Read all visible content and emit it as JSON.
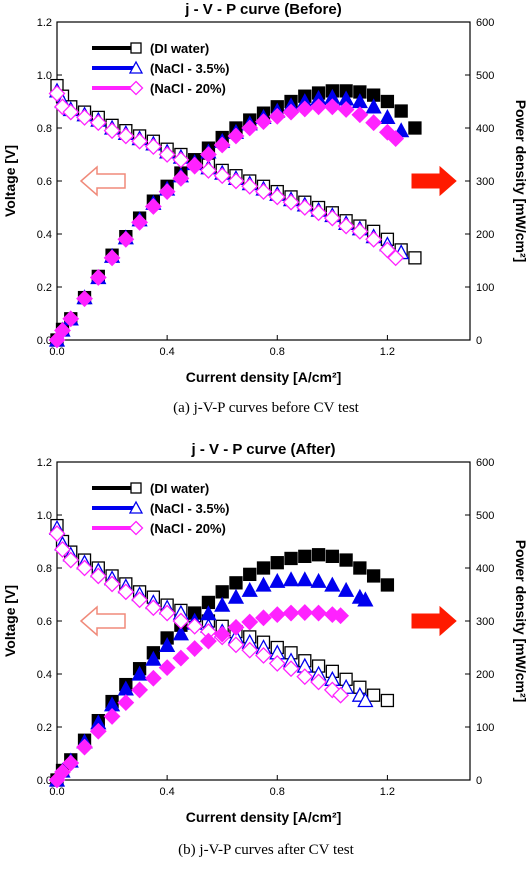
{
  "figure": {
    "caption_a": "(a) j-V-P curves before CV test",
    "caption_b": "(b) j-V-P curves after CV test"
  },
  "chart_data": [
    {
      "type": "scatter",
      "title": "j - V - P curve (Before)",
      "xlabel": "Current density [A/cm²]",
      "ylabel": "Voltage [V]",
      "y2label": "Power density [mW/cm²]",
      "xlim": [
        0,
        1.5
      ],
      "ylim": [
        0,
        1.2
      ],
      "y2lim": [
        0,
        600
      ],
      "xticks": [
        "0.0",
        "0.4",
        "0.8",
        "1.2"
      ],
      "yticks": [
        "0.0",
        "0.2",
        "0.4",
        "0.6",
        "0.8",
        "1.0",
        "1.2"
      ],
      "y2ticks": [
        "0",
        "100",
        "200",
        "300",
        "400",
        "500",
        "600"
      ],
      "legend_position": "top-left",
      "grid": false,
      "series": [
        {
          "name": "(DI water)",
          "color": "#000000",
          "marker": "square",
          "voltage": {
            "x": [
              0.0,
              0.02,
              0.05,
              0.1,
              0.15,
              0.2,
              0.25,
              0.3,
              0.35,
              0.4,
              0.45,
              0.5,
              0.55,
              0.6,
              0.65,
              0.7,
              0.75,
              0.8,
              0.85,
              0.9,
              0.95,
              1.0,
              1.05,
              1.1,
              1.15,
              1.2,
              1.25,
              1.3
            ],
            "y": [
              0.96,
              0.92,
              0.88,
              0.86,
              0.84,
              0.81,
              0.79,
              0.77,
              0.75,
              0.72,
              0.7,
              0.68,
              0.66,
              0.64,
              0.62,
              0.6,
              0.58,
              0.56,
              0.54,
              0.52,
              0.5,
              0.48,
              0.45,
              0.43,
              0.41,
              0.38,
              0.34,
              0.31
            ]
          },
          "power": {
            "x": [
              0.0,
              0.02,
              0.05,
              0.1,
              0.15,
              0.2,
              0.25,
              0.3,
              0.35,
              0.4,
              0.45,
              0.5,
              0.55,
              0.6,
              0.65,
              0.7,
              0.75,
              0.8,
              0.85,
              0.9,
              0.95,
              1.0,
              1.05,
              1.1,
              1.15,
              1.2,
              1.25,
              1.3
            ],
            "y": [
              0,
              20,
              40,
              80,
              120,
              160,
              195,
              230,
              262,
              290,
              315,
              340,
              362,
              382,
              400,
              415,
              428,
              440,
              450,
              460,
              466,
              470,
              470,
              468,
              462,
              450,
              432,
              400
            ]
          }
        },
        {
          "name": "(NaCl - 3.5%)",
          "color": "#0000ee",
          "marker": "triangle",
          "voltage": {
            "x": [
              0.0,
              0.02,
              0.05,
              0.1,
              0.15,
              0.2,
              0.25,
              0.3,
              0.35,
              0.4,
              0.45,
              0.5,
              0.55,
              0.6,
              0.65,
              0.7,
              0.75,
              0.8,
              0.85,
              0.9,
              0.95,
              1.0,
              1.05,
              1.1,
              1.15,
              1.2,
              1.25
            ],
            "y": [
              0.94,
              0.9,
              0.87,
              0.85,
              0.83,
              0.8,
              0.78,
              0.76,
              0.74,
              0.71,
              0.69,
              0.67,
              0.65,
              0.63,
              0.61,
              0.59,
              0.57,
              0.55,
              0.53,
              0.51,
              0.49,
              0.47,
              0.44,
              0.42,
              0.39,
              0.36,
              0.33
            ]
          },
          "power": {
            "x": [
              0.0,
              0.02,
              0.05,
              0.1,
              0.15,
              0.2,
              0.25,
              0.3,
              0.35,
              0.4,
              0.45,
              0.5,
              0.55,
              0.6,
              0.65,
              0.7,
              0.75,
              0.8,
              0.85,
              0.9,
              0.95,
              1.0,
              1.05,
              1.1,
              1.15,
              1.2,
              1.25
            ],
            "y": [
              0,
              19,
              40,
              80,
              118,
              158,
              193,
              227,
              258,
              285,
              310,
              333,
              355,
              375,
              392,
              408,
              420,
              432,
              442,
              450,
              456,
              458,
              455,
              450,
              440,
              420,
              395
            ]
          }
        },
        {
          "name": "(NaCl - 20%)",
          "color": "#ff22ff",
          "marker": "diamond",
          "voltage": {
            "x": [
              0.0,
              0.02,
              0.05,
              0.1,
              0.15,
              0.2,
              0.25,
              0.3,
              0.35,
              0.4,
              0.45,
              0.5,
              0.55,
              0.6,
              0.65,
              0.7,
              0.75,
              0.8,
              0.85,
              0.9,
              0.95,
              1.0,
              1.05,
              1.1,
              1.15,
              1.2,
              1.23
            ],
            "y": [
              0.93,
              0.88,
              0.86,
              0.84,
              0.82,
              0.79,
              0.77,
              0.75,
              0.73,
              0.7,
              0.68,
              0.66,
              0.64,
              0.62,
              0.6,
              0.58,
              0.56,
              0.54,
              0.52,
              0.5,
              0.48,
              0.46,
              0.43,
              0.41,
              0.38,
              0.34,
              0.31
            ]
          },
          "power": {
            "x": [
              0.0,
              0.02,
              0.05,
              0.1,
              0.15,
              0.2,
              0.25,
              0.3,
              0.35,
              0.4,
              0.45,
              0.5,
              0.55,
              0.6,
              0.65,
              0.7,
              0.75,
              0.8,
              0.85,
              0.9,
              0.95,
              1.0,
              1.05,
              1.1,
              1.15,
              1.2,
              1.23
            ],
            "y": [
              0,
              18,
              40,
              78,
              118,
              155,
              190,
              222,
              252,
              280,
              305,
              328,
              350,
              368,
              385,
              400,
              412,
              422,
              430,
              436,
              440,
              440,
              435,
              425,
              410,
              392,
              380
            ]
          }
        }
      ]
    },
    {
      "type": "scatter",
      "title": "j - V - P curve (After)",
      "xlabel": "Current density [A/cm²]",
      "ylabel": "Voltage [V]",
      "y2label": "Power density [mW/cm²]",
      "xlim": [
        0,
        1.5
      ],
      "ylim": [
        0,
        1.2
      ],
      "y2lim": [
        0,
        600
      ],
      "xticks": [
        "0.0",
        "0.4",
        "0.8",
        "1.2"
      ],
      "yticks": [
        "0.0",
        "0.2",
        "0.4",
        "0.6",
        "0.8",
        "1.0",
        "1.2"
      ],
      "y2ticks": [
        "0",
        "100",
        "200",
        "300",
        "400",
        "500",
        "600"
      ],
      "legend_position": "top-left",
      "grid": false,
      "series": [
        {
          "name": "(DI water)",
          "color": "#000000",
          "marker": "square",
          "voltage": {
            "x": [
              0.0,
              0.02,
              0.05,
              0.1,
              0.15,
              0.2,
              0.25,
              0.3,
              0.35,
              0.4,
              0.45,
              0.5,
              0.55,
              0.6,
              0.65,
              0.7,
              0.75,
              0.8,
              0.85,
              0.9,
              0.95,
              1.0,
              1.05,
              1.1,
              1.15,
              1.2
            ],
            "y": [
              0.96,
              0.9,
              0.86,
              0.83,
              0.8,
              0.77,
              0.74,
              0.71,
              0.69,
              0.66,
              0.64,
              0.62,
              0.6,
              0.58,
              0.56,
              0.54,
              0.52,
              0.5,
              0.48,
              0.45,
              0.43,
              0.41,
              0.38,
              0.35,
              0.32,
              0.3
            ]
          },
          "power": {
            "x": [
              0.0,
              0.02,
              0.05,
              0.1,
              0.15,
              0.2,
              0.25,
              0.3,
              0.35,
              0.4,
              0.45,
              0.5,
              0.55,
              0.6,
              0.65,
              0.7,
              0.75,
              0.8,
              0.85,
              0.9,
              0.95,
              1.0,
              1.05,
              1.1,
              1.15,
              1.2
            ],
            "y": [
              0,
              18,
              38,
              75,
              112,
              148,
              180,
              210,
              240,
              268,
              292,
              315,
              335,
              355,
              372,
              388,
              400,
              410,
              418,
              422,
              425,
              422,
              415,
              400,
              385,
              368
            ]
          }
        },
        {
          "name": "(NaCl - 3.5%)",
          "color": "#0000ee",
          "marker": "triangle",
          "voltage": {
            "x": [
              0.0,
              0.02,
              0.05,
              0.1,
              0.15,
              0.2,
              0.25,
              0.3,
              0.35,
              0.4,
              0.45,
              0.5,
              0.55,
              0.6,
              0.65,
              0.7,
              0.75,
              0.8,
              0.85,
              0.9,
              0.95,
              1.0,
              1.05,
              1.1,
              1.12
            ],
            "y": [
              0.95,
              0.89,
              0.85,
              0.82,
              0.79,
              0.76,
              0.73,
              0.7,
              0.67,
              0.65,
              0.63,
              0.6,
              0.58,
              0.56,
              0.54,
              0.52,
              0.5,
              0.48,
              0.45,
              0.43,
              0.4,
              0.38,
              0.35,
              0.32,
              0.3
            ]
          },
          "power": {
            "x": [
              0.0,
              0.02,
              0.05,
              0.1,
              0.15,
              0.2,
              0.25,
              0.3,
              0.35,
              0.4,
              0.45,
              0.5,
              0.55,
              0.6,
              0.65,
              0.7,
              0.75,
              0.8,
              0.85,
              0.9,
              0.95,
              1.0,
              1.05,
              1.1,
              1.12
            ],
            "y": [
              0,
              17,
              36,
              72,
              108,
              142,
              172,
              200,
              228,
              254,
              276,
              296,
              314,
              330,
              345,
              358,
              368,
              375,
              378,
              378,
              375,
              368,
              358,
              345,
              340
            ]
          }
        },
        {
          "name": "(NaCl - 20%)",
          "color": "#ff22ff",
          "marker": "diamond",
          "voltage": {
            "x": [
              0.0,
              0.02,
              0.05,
              0.1,
              0.15,
              0.2,
              0.25,
              0.3,
              0.35,
              0.4,
              0.45,
              0.5,
              0.55,
              0.6,
              0.65,
              0.7,
              0.75,
              0.8,
              0.85,
              0.9,
              0.95,
              1.0,
              1.03
            ],
            "y": [
              0.93,
              0.87,
              0.83,
              0.8,
              0.77,
              0.74,
              0.71,
              0.68,
              0.65,
              0.63,
              0.6,
              0.58,
              0.56,
              0.54,
              0.51,
              0.49,
              0.47,
              0.44,
              0.42,
              0.39,
              0.37,
              0.34,
              0.32
            ]
          },
          "power": {
            "x": [
              0.0,
              0.02,
              0.05,
              0.1,
              0.15,
              0.2,
              0.25,
              0.3,
              0.35,
              0.4,
              0.45,
              0.5,
              0.55,
              0.6,
              0.65,
              0.7,
              0.75,
              0.8,
              0.85,
              0.9,
              0.95,
              1.0,
              1.03
            ],
            "y": [
              0,
              15,
              32,
              62,
              92,
              120,
              146,
              170,
              192,
              212,
              230,
              248,
              262,
              275,
              288,
              298,
              306,
              312,
              315,
              316,
              315,
              312,
              310
            ]
          }
        }
      ]
    }
  ]
}
